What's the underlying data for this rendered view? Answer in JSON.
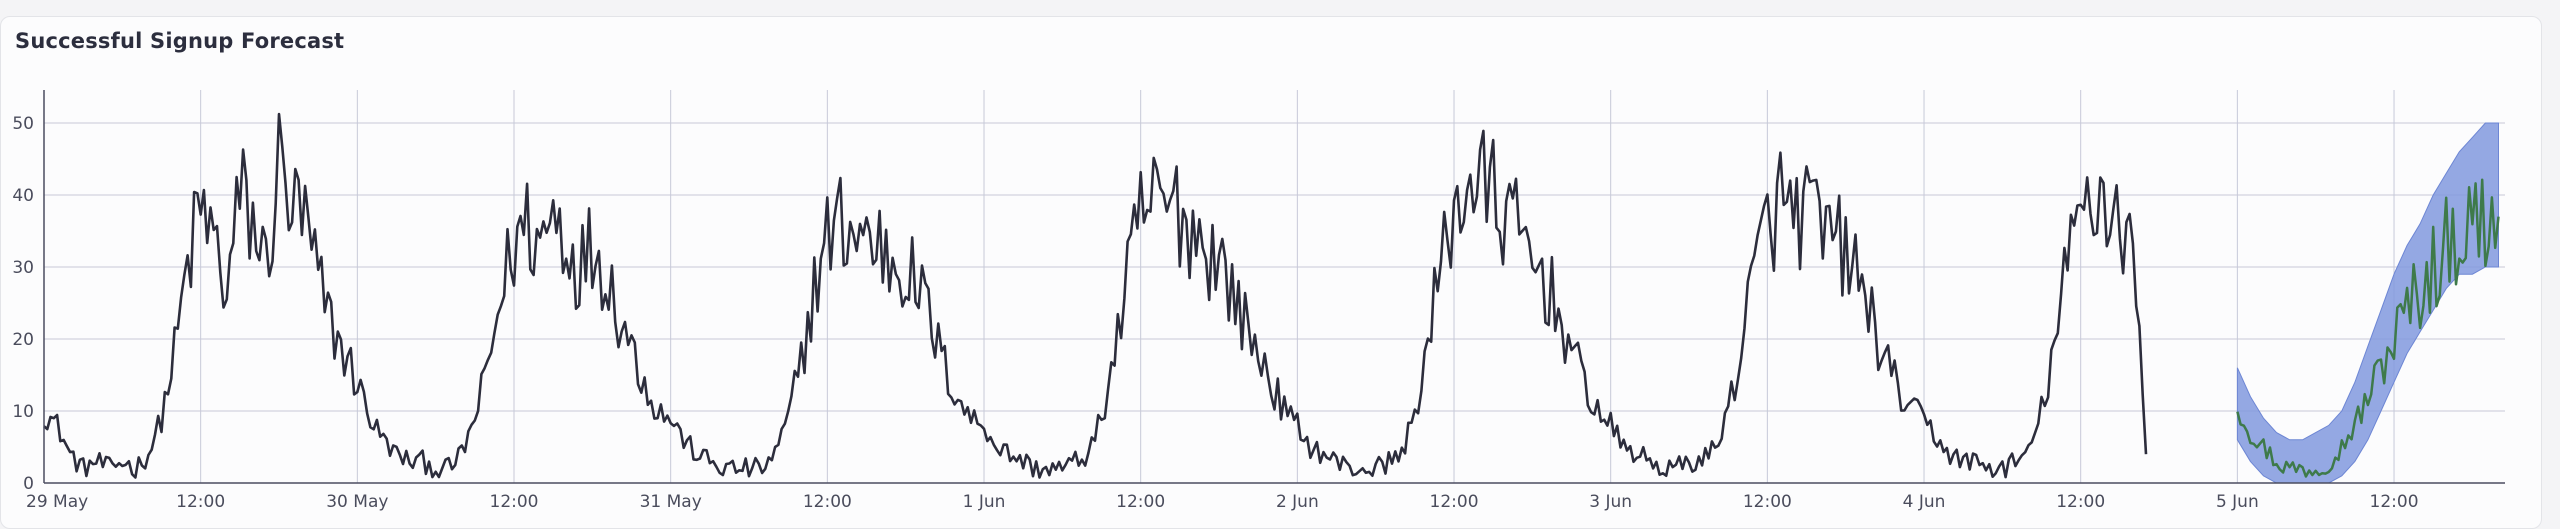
{
  "card": {
    "title": "Successful Signup Forecast"
  },
  "colors": {
    "actual_line": "#2c2d3c",
    "forecast_line": "#3e7a4a",
    "forecast_band": "#8199de",
    "gridline": "#c7c9d8",
    "axis": "#4b4d60"
  },
  "chart_data": {
    "type": "line",
    "title": "Successful Signup Forecast",
    "xlabel": "",
    "ylabel": "",
    "x_range": [
      "2024-05-29T00:00",
      "2024-06-05T20:30"
    ],
    "ylim": [
      0,
      55
    ],
    "grid": true,
    "legend": "none",
    "y_ticks": [
      0,
      10,
      20,
      30,
      40,
      50
    ],
    "x_ticks": [
      {
        "t": "2024-05-29T00:00",
        "label": "29 May"
      },
      {
        "t": "2024-05-29T12:00",
        "label": "12:00"
      },
      {
        "t": "2024-05-30T00:00",
        "label": "30 May"
      },
      {
        "t": "2024-05-30T12:00",
        "label": "12:00"
      },
      {
        "t": "2024-05-31T00:00",
        "label": "31 May"
      },
      {
        "t": "2024-05-31T12:00",
        "label": "12:00"
      },
      {
        "t": "2024-06-01T00:00",
        "label": "1 Jun"
      },
      {
        "t": "2024-06-01T12:00",
        "label": "12:00"
      },
      {
        "t": "2024-06-02T00:00",
        "label": "2 Jun"
      },
      {
        "t": "2024-06-02T12:00",
        "label": "12:00"
      },
      {
        "t": "2024-06-03T00:00",
        "label": "3 Jun"
      },
      {
        "t": "2024-06-03T12:00",
        "label": "12:00"
      },
      {
        "t": "2024-06-04T00:00",
        "label": "4 Jun"
      },
      {
        "t": "2024-06-04T12:00",
        "label": "12:00"
      },
      {
        "t": "2024-06-05T00:00",
        "label": "5 Jun"
      },
      {
        "t": "2024-06-05T12:00",
        "label": "12:00"
      }
    ],
    "series": [
      {
        "role": "actual",
        "start": "2024-05-29T00:00",
        "step_minutes": 60,
        "values": [
          10,
          8,
          4,
          2,
          3,
          2,
          3,
          2,
          4,
          9,
          18,
          30,
          38,
          34,
          26,
          40,
          36,
          30,
          44,
          38,
          36,
          28,
          22,
          18,
          14,
          9,
          6,
          4,
          3,
          3,
          2,
          2,
          4,
          9,
          16,
          26,
          33,
          36,
          33,
          38,
          34,
          30,
          33,
          30,
          24,
          19,
          14,
          10,
          9,
          6,
          4,
          3,
          2,
          2,
          2,
          2,
          4,
          9,
          17,
          27,
          34,
          36,
          35,
          34,
          33,
          31,
          30,
          27,
          22,
          16,
          12,
          9,
          8,
          5,
          4,
          3,
          2,
          2,
          2,
          3,
          4,
          9,
          18,
          28,
          37,
          39,
          38,
          38,
          35,
          33,
          31,
          27,
          22,
          18,
          14,
          10,
          8,
          5,
          4,
          3,
          2,
          2,
          2,
          3,
          4,
          10,
          19,
          30,
          38,
          42,
          41,
          40,
          37,
          34,
          31,
          28,
          24,
          18,
          14,
          10,
          8,
          5,
          4,
          3,
          2,
          2,
          3,
          3,
          5,
          10,
          19,
          29,
          36,
          39,
          37,
          38,
          35,
          34,
          32,
          28,
          23,
          17,
          13,
          10,
          9,
          6,
          4,
          3,
          3,
          2,
          2,
          3,
          4,
          10,
          19,
          30,
          38,
          41,
          39,
          37,
          33,
          4
        ]
      },
      {
        "role": "forecast",
        "start": "2024-06-05T00:00",
        "step_minutes": 60,
        "values": [
          11,
          7,
          5,
          3,
          2,
          2,
          2,
          3,
          5,
          8,
          12,
          16,
          20,
          24,
          27,
          30,
          33,
          35,
          36,
          37,
          37
        ],
        "lower": [
          6,
          3,
          1,
          0,
          0,
          0,
          0,
          0,
          1,
          3,
          6,
          10,
          14,
          18,
          21,
          24,
          27,
          29,
          29,
          30,
          30
        ],
        "upper": [
          16,
          12,
          9,
          7,
          6,
          6,
          7,
          8,
          10,
          14,
          19,
          24,
          29,
          33,
          36,
          40,
          43,
          46,
          48,
          50,
          50
        ]
      }
    ]
  }
}
